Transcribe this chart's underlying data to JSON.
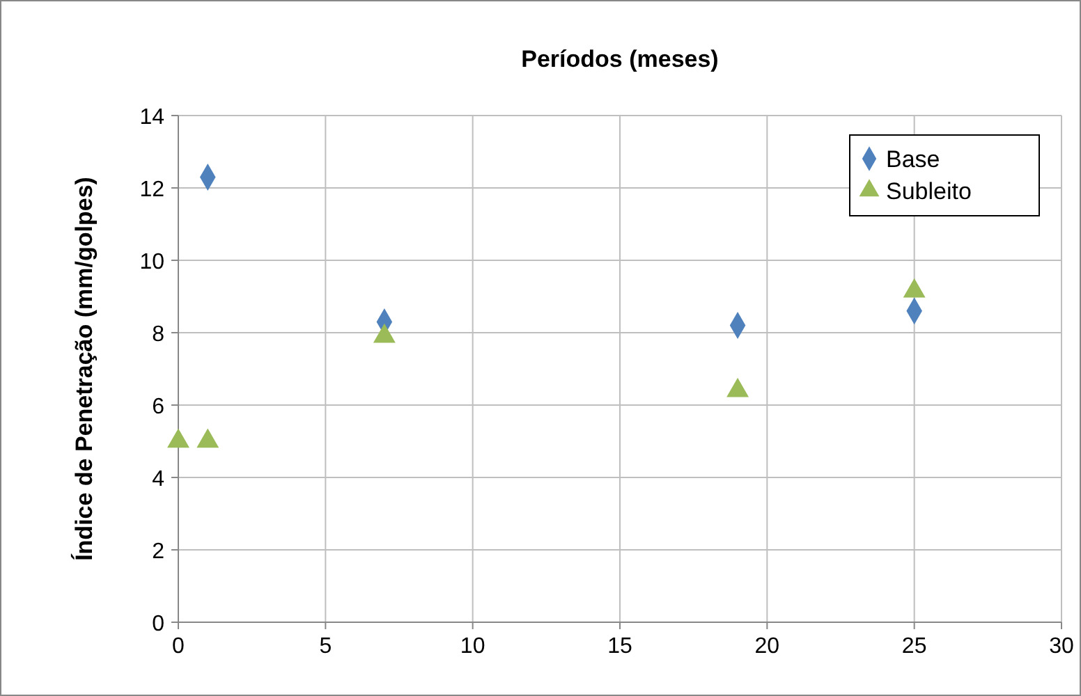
{
  "chart_data": {
    "type": "scatter",
    "title": "Períodos (meses)",
    "ylabel": "Índice de Penetração (mm/golpes)",
    "xlim": [
      0,
      30
    ],
    "xticks": [
      0,
      5,
      10,
      15,
      20,
      25,
      30
    ],
    "ylim": [
      0,
      14
    ],
    "yticks": [
      0,
      2,
      4,
      6,
      8,
      10,
      12,
      14
    ],
    "grid": true,
    "legend": "top right",
    "series": [
      {
        "name": "Base",
        "color": "#4f81bd",
        "marker": "diamond",
        "x": [
          1,
          7,
          19,
          25
        ],
        "values": [
          12.3,
          8.3,
          8.2,
          8.6
        ]
      },
      {
        "name": "Subleito",
        "color": "#9bbb59",
        "marker": "triangle",
        "x": [
          0,
          1,
          7,
          19,
          25
        ],
        "values": [
          5,
          5,
          7.9,
          6.4,
          9.15
        ]
      }
    ]
  }
}
